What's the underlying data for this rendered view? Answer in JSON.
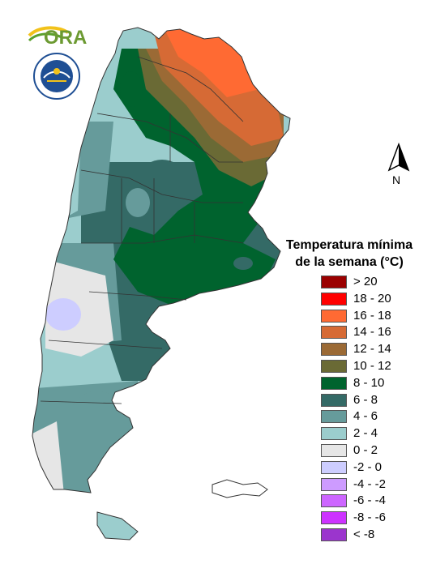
{
  "logos": {
    "ora_text": "ORA",
    "smn_seal_text": "SERVICIO METEOROLOGICO NACIONAL · ARGENTINA"
  },
  "north_arrow": {
    "label": "N"
  },
  "legend": {
    "title_line1": "Temperatura mínima",
    "title_line2": "de la semana (°C)",
    "items": [
      {
        "label": "> 20",
        "color": "#9b0000"
      },
      {
        "label": "18 - 20",
        "color": "#ff0000"
      },
      {
        "label": "16 - 18",
        "color": "#ff6a33"
      },
      {
        "label": "14 - 16",
        "color": "#d66a35"
      },
      {
        "label": "12 - 14",
        "color": "#9b6a35"
      },
      {
        "label": "10 - 12",
        "color": "#6a6a35"
      },
      {
        "label": "8 - 10",
        "color": "#00632e"
      },
      {
        "label": "6 - 8",
        "color": "#346a66"
      },
      {
        "label": "4 - 6",
        "color": "#669b9b"
      },
      {
        "label": "2 - 4",
        "color": "#9bcdcd"
      },
      {
        "label": "0 - 2",
        "color": "#e6e6e6"
      },
      {
        "label": "-2 - 0",
        "color": "#cdcdff"
      },
      {
        "label": "-4 - -2",
        "color": "#cd9bff"
      },
      {
        "label": "-6 - -4",
        "color": "#cd66ff"
      },
      {
        "label": "-8 - -6",
        "color": "#cd33ff"
      },
      {
        "label": "< -8",
        "color": "#9b35cd"
      }
    ]
  }
}
